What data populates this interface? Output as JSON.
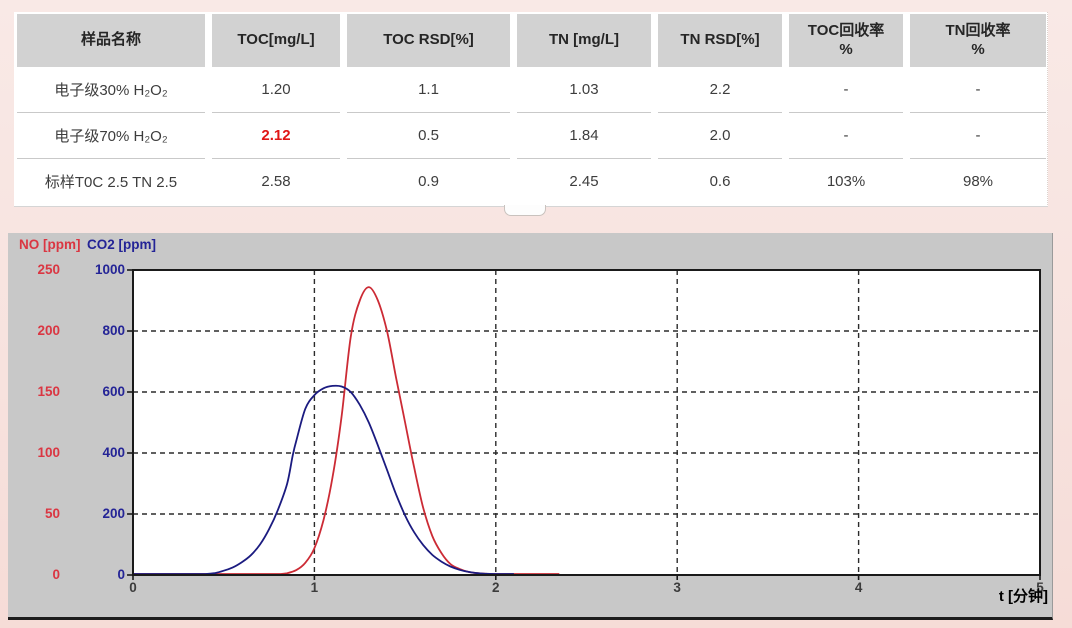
{
  "table": {
    "columns": [
      "样品名称",
      "TOC[mg/L]",
      "TOC RSD[%]",
      "TN [mg/L]",
      "TN RSD[%]",
      "TOC回收率\n%",
      "TN回收率\n%"
    ],
    "rows": [
      {
        "cells": [
          "电子级30% H₂O₂",
          "1.20",
          "1.1",
          "1.03",
          "2.2",
          "-",
          "-"
        ],
        "highlight": -1
      },
      {
        "cells": [
          "电子级70% H₂O₂",
          "2.12",
          "0.5",
          "1.84",
          "2.0",
          "-",
          "-"
        ],
        "highlight": 1
      },
      {
        "cells": [
          "标样T0C 2.5 TN 2.5",
          "2.58",
          "0.9",
          "2.45",
          "0.6",
          "103%",
          "98%"
        ],
        "highlight": -1
      }
    ],
    "highlight_color": "#e01616"
  },
  "chart_data": {
    "type": "line",
    "x_label": "t [分钟]",
    "x_range": [
      0,
      5
    ],
    "x_ticks": [
      0,
      1,
      2,
      3,
      4,
      5
    ],
    "grid": "dashed",
    "grid_color": "#2b2b2b",
    "plot_border_color": "#1a1a1a",
    "axes": [
      {
        "name": "NO [ppm]",
        "color": "#da3642",
        "range": [
          0,
          250
        ],
        "ticks": [
          250,
          200,
          150,
          100,
          50,
          0
        ]
      },
      {
        "name": "CO2 [ppm]",
        "color": "#242496",
        "range": [
          0,
          1000
        ],
        "ticks": [
          1000,
          800,
          600,
          400,
          200,
          0
        ]
      }
    ],
    "series": [
      {
        "name": "NO",
        "unit": "ppm",
        "axis": 0,
        "color": "#cc2b35",
        "points": [
          [
            0,
            0
          ],
          [
            0.5,
            0
          ],
          [
            0.7,
            0
          ],
          [
            0.8,
            0.5
          ],
          [
            0.85,
            1.5
          ],
          [
            0.9,
            4
          ],
          [
            0.95,
            10
          ],
          [
            1.0,
            22
          ],
          [
            1.05,
            45
          ],
          [
            1.1,
            80
          ],
          [
            1.15,
            130
          ],
          [
            1.2,
            195
          ],
          [
            1.25,
            225
          ],
          [
            1.3,
            236
          ],
          [
            1.35,
            225
          ],
          [
            1.4,
            200
          ],
          [
            1.45,
            162
          ],
          [
            1.5,
            125
          ],
          [
            1.55,
            88
          ],
          [
            1.6,
            55
          ],
          [
            1.65,
            32
          ],
          [
            1.7,
            18
          ],
          [
            1.75,
            9
          ],
          [
            1.8,
            5
          ],
          [
            1.85,
            2.5
          ],
          [
            1.9,
            1.5
          ],
          [
            1.95,
            1
          ],
          [
            2.0,
            0.6
          ],
          [
            2.1,
            0.3
          ],
          [
            2.2,
            0.2
          ],
          [
            2.35,
            0.2
          ]
        ]
      },
      {
        "name": "CO2",
        "unit": "ppm",
        "axis": 1,
        "color": "#1b1b80",
        "points": [
          [
            0,
            0
          ],
          [
            0.3,
            0
          ],
          [
            0.4,
            2
          ],
          [
            0.45,
            6
          ],
          [
            0.5,
            14
          ],
          [
            0.55,
            25
          ],
          [
            0.6,
            42
          ],
          [
            0.65,
            65
          ],
          [
            0.7,
            100
          ],
          [
            0.75,
            150
          ],
          [
            0.8,
            215
          ],
          [
            0.85,
            300
          ],
          [
            0.88,
            390
          ],
          [
            0.9,
            440
          ],
          [
            0.95,
            545
          ],
          [
            1.0,
            590
          ],
          [
            1.05,
            612
          ],
          [
            1.1,
            620
          ],
          [
            1.15,
            618
          ],
          [
            1.2,
            600
          ],
          [
            1.25,
            558
          ],
          [
            1.3,
            500
          ],
          [
            1.35,
            425
          ],
          [
            1.4,
            345
          ],
          [
            1.45,
            265
          ],
          [
            1.5,
            195
          ],
          [
            1.55,
            140
          ],
          [
            1.6,
            98
          ],
          [
            1.65,
            66
          ],
          [
            1.7,
            44
          ],
          [
            1.75,
            28
          ],
          [
            1.8,
            17
          ],
          [
            1.85,
            10
          ],
          [
            1.9,
            6
          ],
          [
            1.95,
            4
          ],
          [
            2.0,
            2
          ],
          [
            2.05,
            1
          ],
          [
            2.1,
            0
          ]
        ]
      }
    ]
  }
}
